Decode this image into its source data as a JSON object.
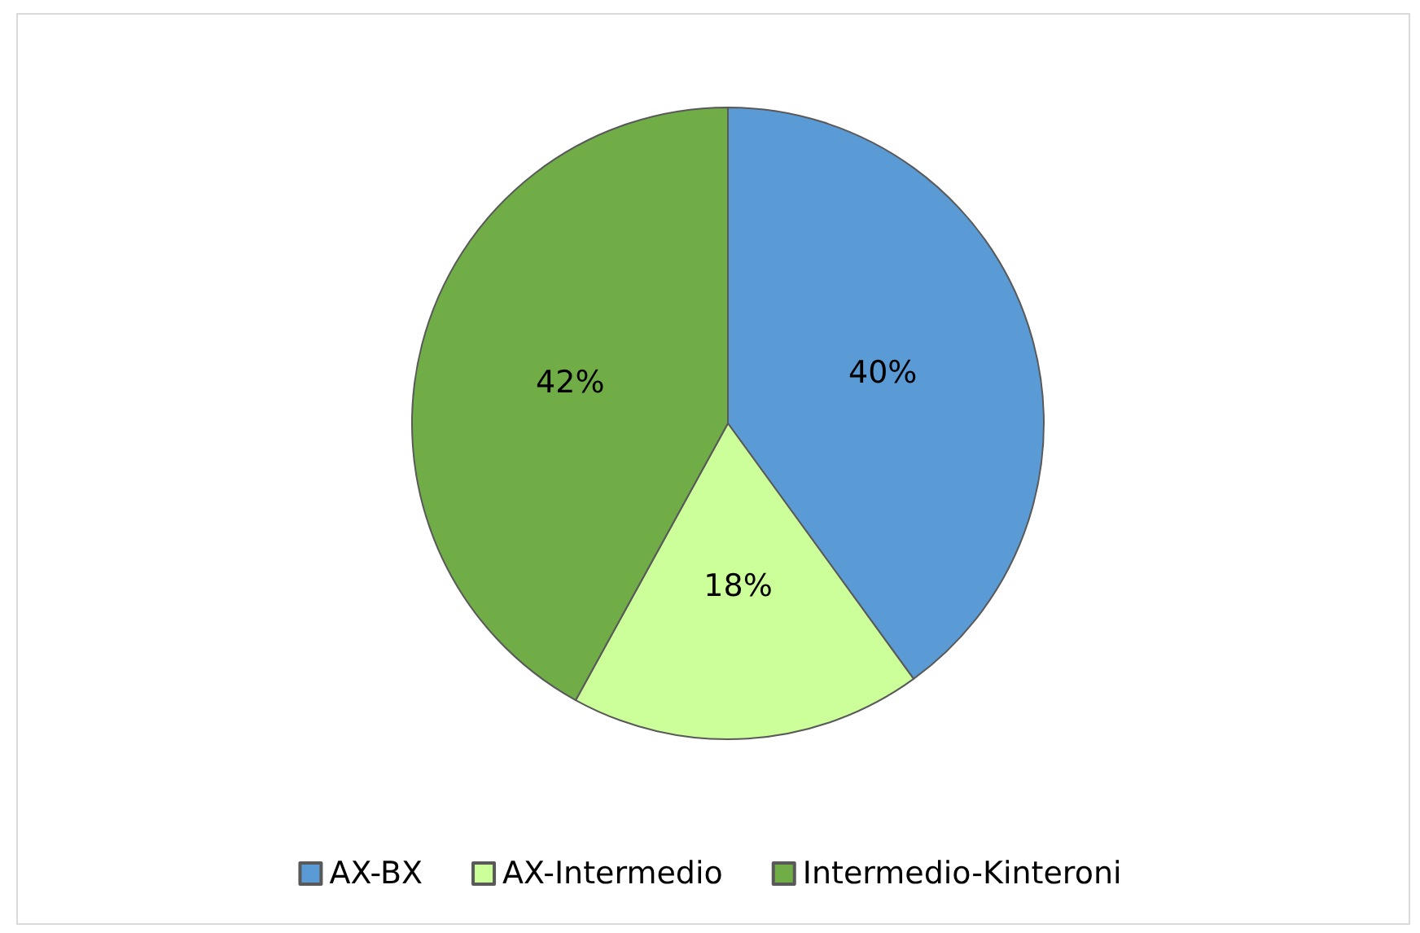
{
  "chart_data": {
    "type": "pie",
    "categories": [
      "AX-BX",
      "AX-Intermedio",
      "Intermedio-Kinteroni"
    ],
    "values": [
      40,
      18,
      42
    ],
    "colors": [
      "#5b9bd5",
      "#ccff99",
      "#70ad47"
    ],
    "value_labels": [
      "40%",
      "18%",
      "42%"
    ],
    "legend": "bottom"
  }
}
